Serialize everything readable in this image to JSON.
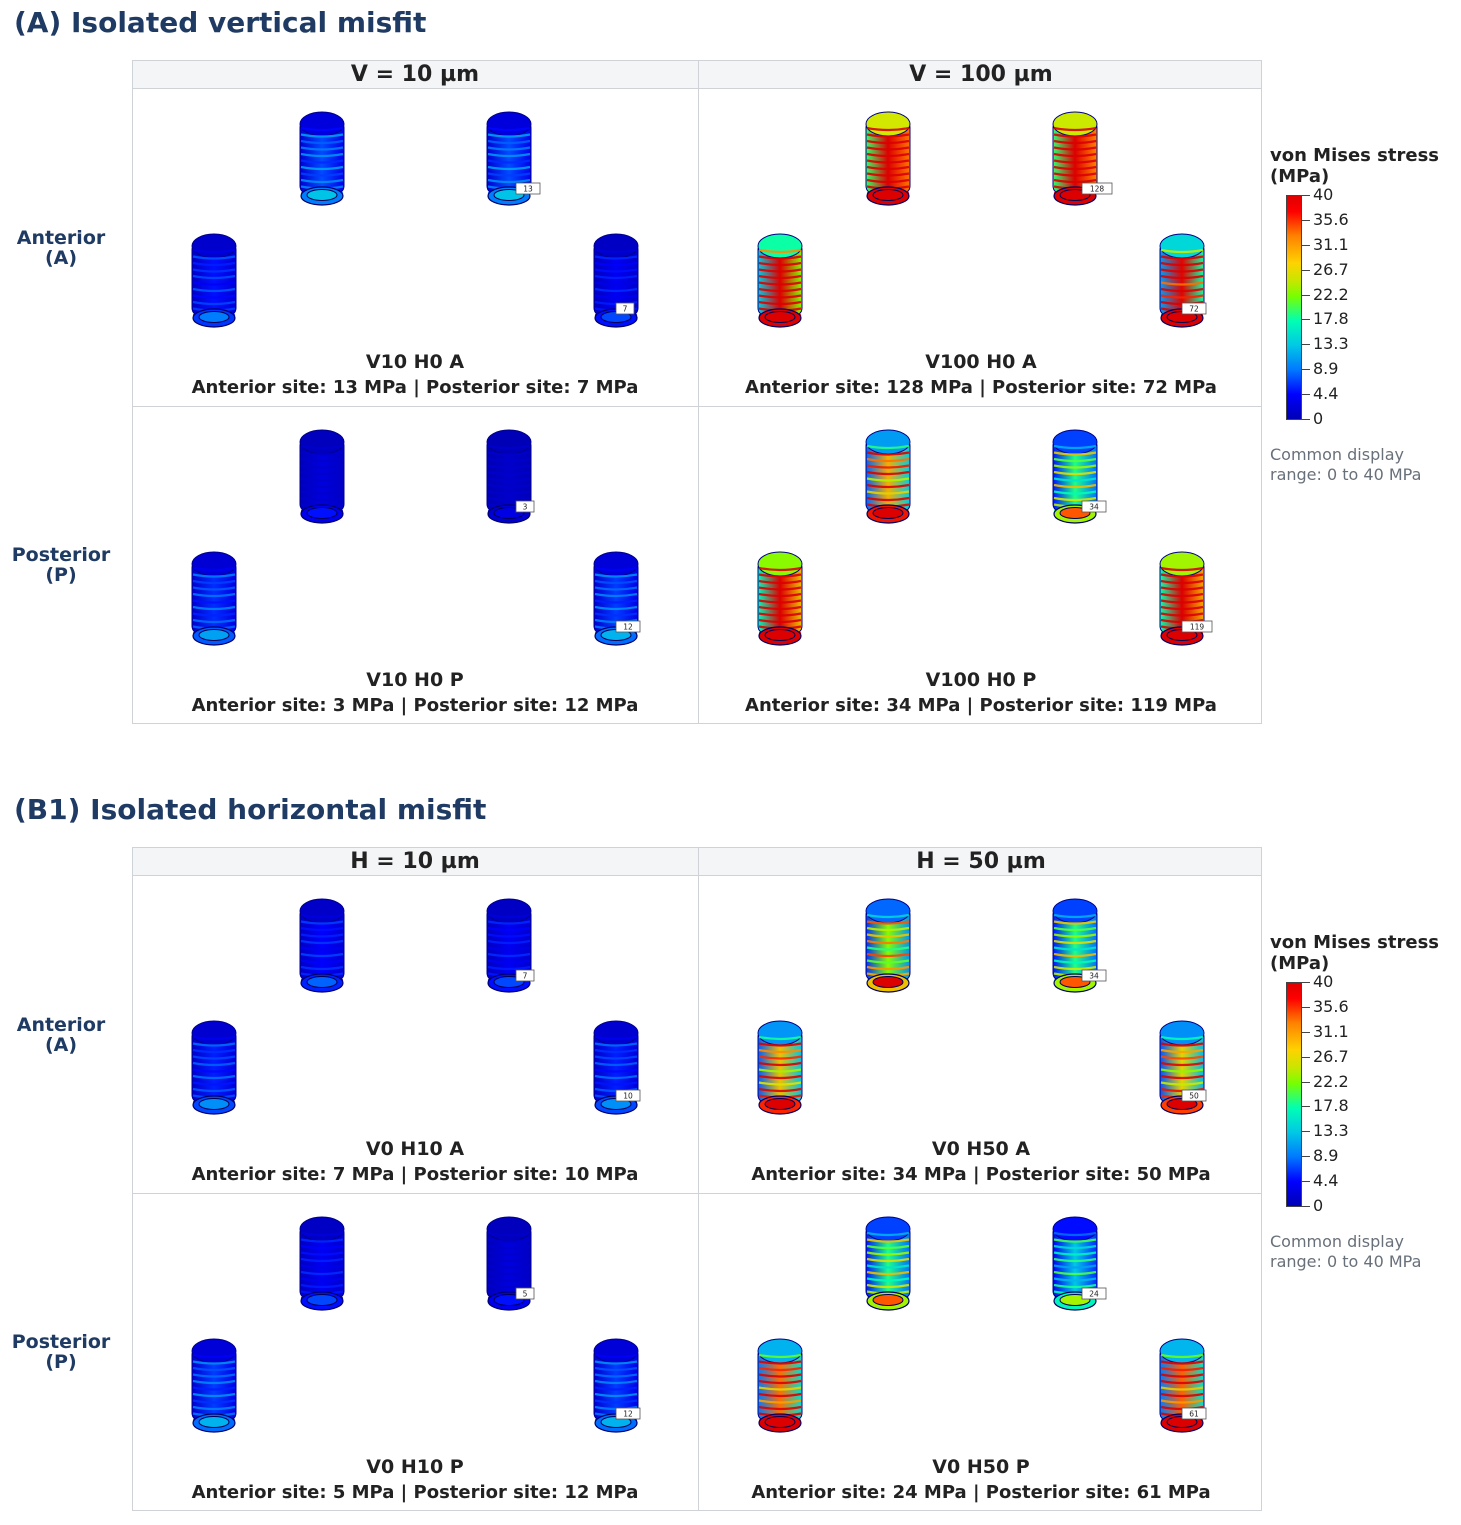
{
  "colorbar": {
    "title_line1": "von Mises stress",
    "title_line2": "(MPa)",
    "ticks": [
      "40",
      "35.6",
      "31.1",
      "26.7",
      "22.2",
      "17.8",
      "13.3",
      "8.9",
      "4.4",
      "0"
    ],
    "note_line1": "Common display",
    "note_line2": "range: 0 to 40 MPa",
    "range": [
      0,
      40
    ]
  },
  "sections": [
    {
      "title": "(A) Isolated vertical misfit",
      "columns": [
        "V = 10 µm",
        "V = 100 µm"
      ],
      "rows": [
        {
          "line1": "Anterior",
          "line2": "(A)"
        },
        {
          "line1": "Posterior",
          "line2": "(P)"
        }
      ],
      "cells": [
        {
          "title": "V10 H0 A",
          "subtitle": "Anterior site: 13 MPa  |  Posterior site: 7 MPa",
          "anterior": 13,
          "posterior": 7,
          "tag_a": "13",
          "tag_p": "7"
        },
        {
          "title": "V100 H0 A",
          "subtitle": "Anterior site: 128 MPa  |  Posterior site: 72 MPa",
          "anterior": 128,
          "posterior": 72,
          "tag_a": "128",
          "tag_p": "72"
        },
        {
          "title": "V10 H0 P",
          "subtitle": "Anterior site: 3 MPa  |  Posterior site: 12 MPa",
          "anterior": 3,
          "posterior": 12,
          "tag_a": "3",
          "tag_p": "12"
        },
        {
          "title": "V100 H0 P",
          "subtitle": "Anterior site: 34 MPa  |  Posterior site: 119 MPa",
          "anterior": 34,
          "posterior": 119,
          "tag_a": "34",
          "tag_p": "119"
        }
      ]
    },
    {
      "title": "(B1) Isolated horizontal misfit",
      "columns": [
        "H = 10 µm",
        "H = 50 µm"
      ],
      "rows": [
        {
          "line1": "Anterior",
          "line2": "(A)"
        },
        {
          "line1": "Posterior",
          "line2": "(P)"
        }
      ],
      "cells": [
        {
          "title": "V0 H10 A",
          "subtitle": "Anterior site: 7 MPa  |  Posterior site: 10 MPa",
          "anterior": 7,
          "posterior": 10,
          "tag_a": "7",
          "tag_p": "10"
        },
        {
          "title": "V0 H50 A",
          "subtitle": "Anterior site: 34 MPa  |  Posterior site: 50 MPa",
          "anterior": 34,
          "posterior": 50,
          "tag_a": "34",
          "tag_p": "50"
        },
        {
          "title": "V0 H10 P",
          "subtitle": "Anterior site: 5 MPa  |  Posterior site: 12 MPa",
          "anterior": 5,
          "posterior": 12,
          "tag_a": "5",
          "tag_p": "12"
        },
        {
          "title": "V0 H50 P",
          "subtitle": "Anterior site: 24 MPa  |  Posterior site: 61 MPa",
          "anterior": 24,
          "posterior": 61,
          "tag_a": "24",
          "tag_p": "61"
        }
      ]
    }
  ]
}
